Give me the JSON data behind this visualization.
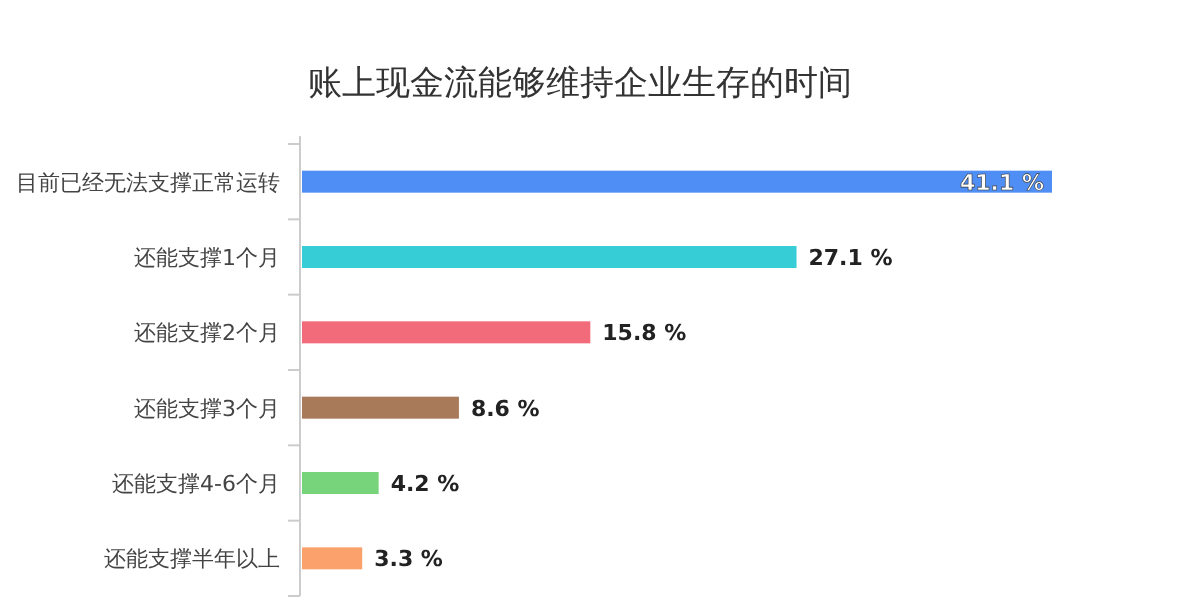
{
  "chart_data": {
    "type": "bar",
    "orientation": "horizontal",
    "title": "账上现金流能够维持企业生存的时间",
    "categories": [
      "目前已经无法支撑正常运转",
      "还能支撑1个月",
      "还能支撑2个月",
      "还能支撑3个月",
      "还能支撑4-6个月",
      "还能支撑半年以上"
    ],
    "values": [
      41.1,
      27.1,
      15.8,
      8.6,
      4.2,
      3.3
    ],
    "colors": [
      "#4f8ff5",
      "#36cdd6",
      "#f26b7a",
      "#a97a5a",
      "#77d47a",
      "#fba26c"
    ],
    "value_labels": [
      "41.1 %",
      "27.1 %",
      "15.8 %",
      "8.6 %",
      "4.2 %",
      "3.3 %"
    ],
    "grid": false
  }
}
